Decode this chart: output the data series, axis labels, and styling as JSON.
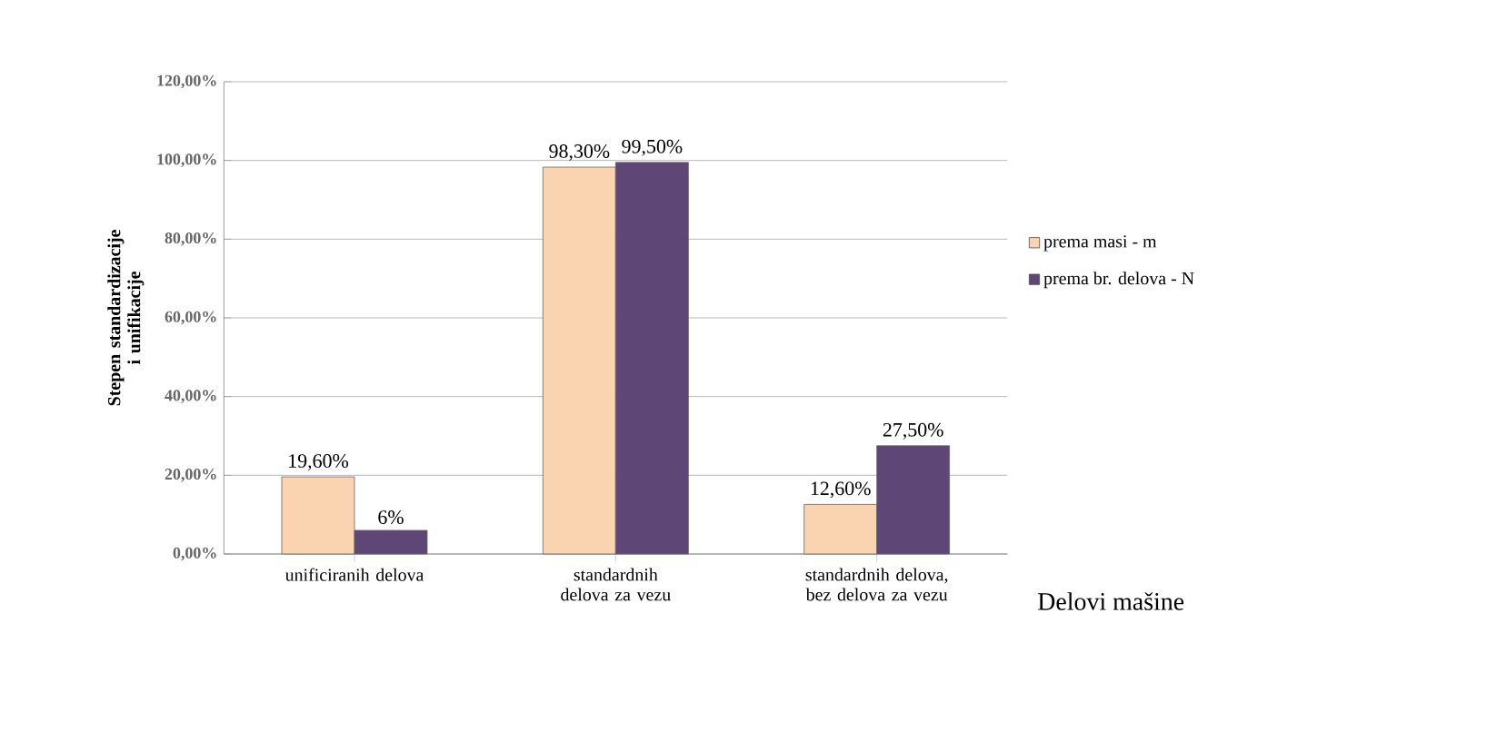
{
  "chart_data": {
    "type": "bar",
    "ylabel": "Stepen standardizacije i unifikacije",
    "xlabel": "Delovi mašine",
    "categories": [
      "unificiranih delova",
      "standardnih delova za vezu",
      "standardnih delova, bez delova za vezu"
    ],
    "series": [
      {
        "name": "prema masi - m",
        "color": "#fad4b0",
        "values": [
          19.6,
          98.3,
          12.6
        ],
        "value_labels": [
          "19,60%",
          "98,30%",
          "12,60%"
        ]
      },
      {
        "name": "prema br. delova - N",
        "color": "#5e4677",
        "values": [
          6,
          99.5,
          27.5
        ],
        "value_labels": [
          "6%",
          "99,50%",
          "27,50%"
        ]
      }
    ],
    "ylim": [
      0,
      120
    ],
    "yticks": [
      {
        "value": 0,
        "label": "0,00%"
      },
      {
        "value": 20,
        "label": "20,00%"
      },
      {
        "value": 40,
        "label": "40,00%"
      },
      {
        "value": 60,
        "label": "60,00%"
      },
      {
        "value": 80,
        "label": "80,00%"
      },
      {
        "value": 100,
        "label": "100,00%"
      },
      {
        "value": 120,
        "label": "120,00%"
      }
    ],
    "grid": "y",
    "legend": "right"
  }
}
